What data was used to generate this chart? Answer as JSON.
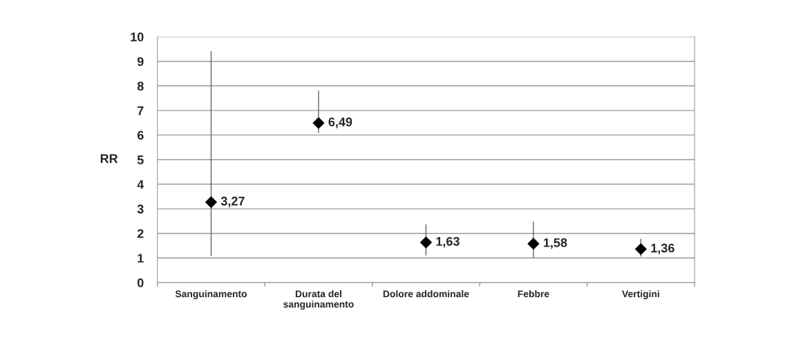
{
  "chart_data": {
    "type": "scatter",
    "ylabel": "RR",
    "categories": [
      "Sanguinamento",
      "Durata del\nsanguinamento",
      "Dolore addominale",
      "Febbre",
      "Vertigini"
    ],
    "series": [
      {
        "color": "#000000",
        "values": [
          3.27,
          6.49,
          1.63,
          1.58,
          1.36
        ],
        "errors": [
          [
            1.1,
            9.4
          ],
          [
            6.1,
            7.8
          ],
          [
            1.12,
            2.35
          ],
          [
            1.0,
            2.46
          ],
          [
            1.07,
            1.77
          ]
        ],
        "value_labels": [
          "3,27",
          "6,49",
          "1,63",
          "1,58",
          "1,36"
        ]
      }
    ],
    "ylim": [
      0,
      10
    ],
    "yticks": [
      0,
      1,
      2,
      3,
      4,
      5,
      6,
      7,
      8,
      9,
      10
    ],
    "grid": "y",
    "marker": "diamond",
    "legend": false
  }
}
